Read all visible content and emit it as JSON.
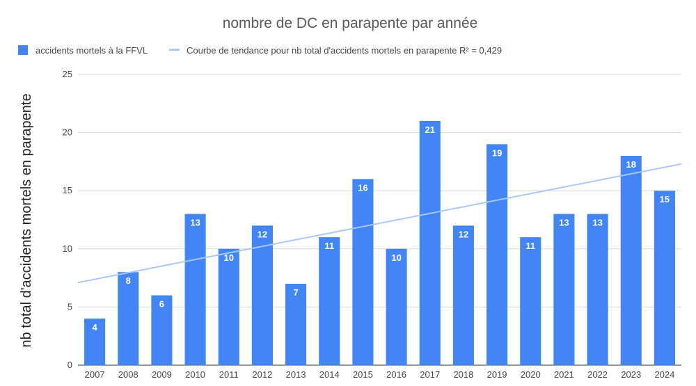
{
  "chart_data": {
    "type": "bar",
    "title": "nombre de DC en parapente par année",
    "xlabel": "",
    "ylabel": "nb total d'accidents mortels en parapente",
    "ylim": [
      0,
      25
    ],
    "yticks": [
      0,
      5,
      10,
      15,
      20,
      25
    ],
    "grid": true,
    "legend_position": "top-left",
    "categories": [
      "2007",
      "2008",
      "2009",
      "2010",
      "2011",
      "2012",
      "2013",
      "2014",
      "2015",
      "2016",
      "2017",
      "2018",
      "2019",
      "2020",
      "2021",
      "2022",
      "2023",
      "2024"
    ],
    "series": [
      {
        "name": "accidents mortels à la FFVL",
        "color": "#4285f4",
        "values": [
          4,
          8,
          6,
          13,
          10,
          12,
          7,
          11,
          16,
          10,
          21,
          12,
          19,
          11,
          13,
          13,
          18,
          15
        ]
      }
    ],
    "trendline": {
      "name": "Courbe de tendance pour nb total d'accidents mortels en parapente R² = 0,429",
      "color": "#a9c8f4",
      "start_value": 7.1,
      "end_value": 17.3
    }
  }
}
